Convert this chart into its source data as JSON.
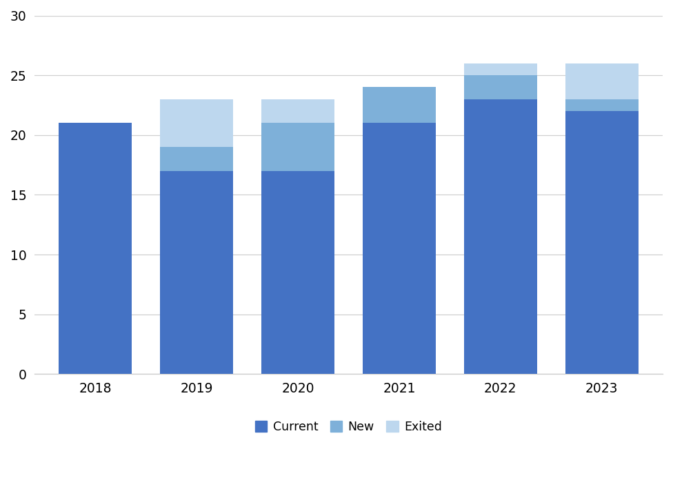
{
  "years": [
    "2018",
    "2019",
    "2020",
    "2021",
    "2022",
    "2023"
  ],
  "current": [
    21,
    17,
    17,
    21,
    23,
    22
  ],
  "new": [
    0,
    2,
    4,
    3,
    2,
    1
  ],
  "exited": [
    0,
    4,
    2,
    0,
    1,
    3
  ],
  "color_current": "#4472C4",
  "color_new": "#7EB0D9",
  "color_exited": "#BDD7EE",
  "ylim": [
    0,
    30
  ],
  "yticks": [
    0,
    5,
    10,
    15,
    20,
    25,
    30
  ],
  "legend_labels": [
    "Current",
    "New",
    "Exited"
  ],
  "background_color": "#ffffff",
  "grid_color": "#d0d0d0",
  "bar_width": 0.72,
  "figsize": [
    9.76,
    6.93
  ],
  "dpi": 100
}
